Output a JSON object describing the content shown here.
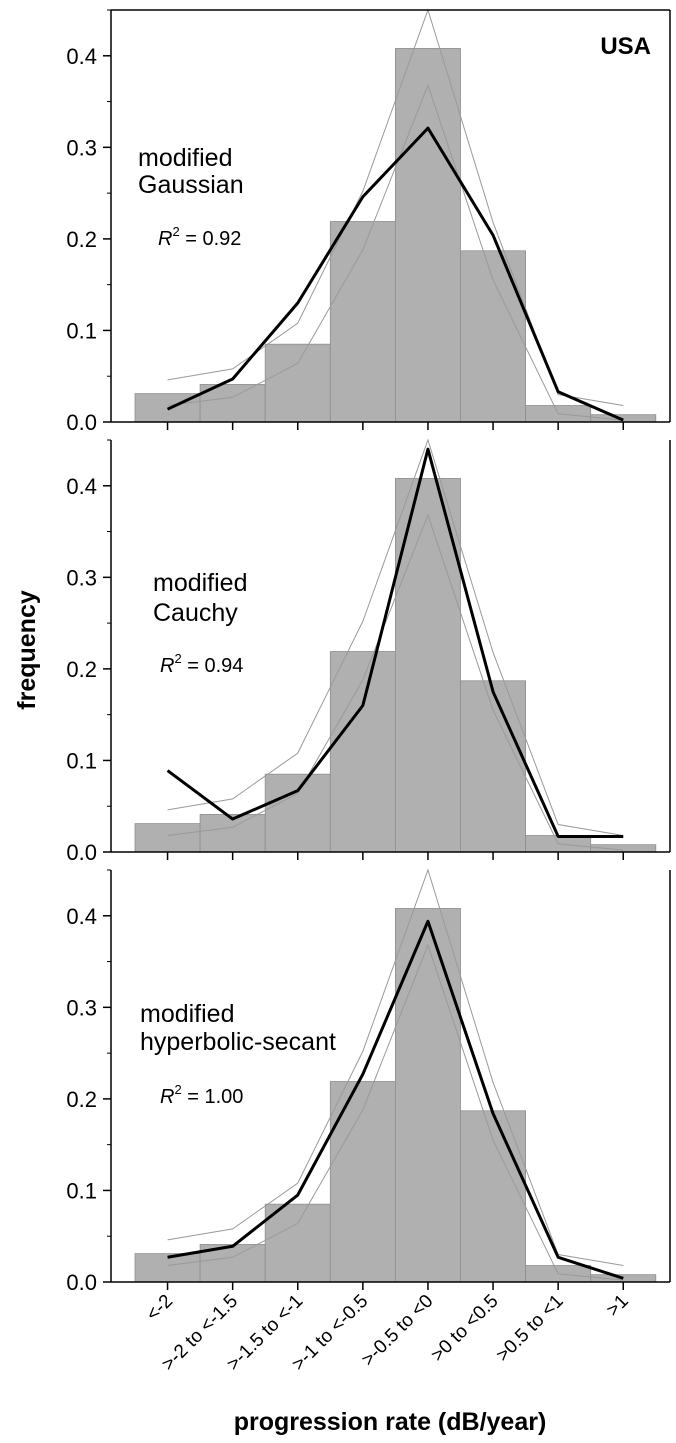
{
  "chart_data": {
    "type": "bar",
    "corner_label": "USA",
    "xlabel": "progression rate (dB/year)",
    "ylabel": "frequency",
    "ylim": [
      0,
      0.45
    ],
    "yticks": [
      "0.0",
      "0.1",
      "0.2",
      "0.3",
      "0.4"
    ],
    "categories": [
      "<-2",
      ">-2 to <-1.5",
      ">-1.5 to <-1",
      ">-1 to <-0.5",
      ">-0.5 to <0",
      ">0 to <0.5",
      ">0.5 to <1",
      ">1"
    ],
    "values": [
      0.031,
      0.041,
      0.085,
      0.219,
      0.408,
      0.187,
      0.018,
      0.008
    ],
    "confidence_upper": [
      0.046,
      0.058,
      0.108,
      0.252,
      0.45,
      0.218,
      0.03,
      0.018
    ],
    "confidence_lower": [
      0.018,
      0.027,
      0.064,
      0.188,
      0.368,
      0.155,
      0.009,
      0.002
    ],
    "panels": [
      {
        "label_line1": "modified",
        "label_line2": "Gaussian",
        "r2_symbol": "R",
        "r2_exp": "2",
        "r2_value": " = 0.92",
        "fit": [
          0.014,
          0.047,
          0.13,
          0.246,
          0.321,
          0.204,
          0.033,
          0.002
        ]
      },
      {
        "label_line1": "modified",
        "label_line2": "Cauchy",
        "r2_symbol": "R",
        "r2_exp": "2",
        "r2_value": " = 0.94",
        "fit": [
          0.089,
          0.036,
          0.067,
          0.16,
          0.44,
          0.175,
          0.017,
          0.017
        ]
      },
      {
        "label_line1": "modified",
        "label_line2": "hyperbolic-secant",
        "r2_symbol": "R",
        "r2_exp": "2",
        "r2_value": " = 1.00",
        "fit": [
          0.027,
          0.039,
          0.095,
          0.227,
          0.394,
          0.184,
          0.027,
          0.004
        ]
      }
    ],
    "colors": {
      "bar": "#b0b0b0",
      "bar_edge": "#8e8e8e",
      "fit": "#000000",
      "ci": "#9a9a9a",
      "axis": "#000000"
    },
    "grid": false
  }
}
